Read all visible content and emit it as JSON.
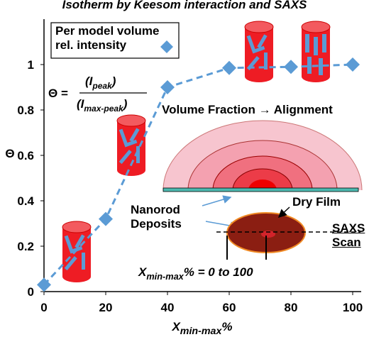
{
  "chart_data": {
    "type": "line",
    "title": "Isotherm by Keesom interaction and SAXS",
    "x_label": {
      "main": "X",
      "sub": "min-max",
      "tail": "%"
    },
    "y_label": "Θ",
    "x": [
      0,
      20,
      40,
      60,
      80,
      100
    ],
    "series": [
      {
        "name": "Per model volume rel. intensity",
        "color": "#5b9bd5",
        "values": [
          0.03,
          0.32,
          0.9,
          0.985,
          0.99,
          1.0
        ]
      }
    ],
    "xlim": [
      0,
      100
    ],
    "xticks": [
      0,
      20,
      40,
      60,
      80,
      100
    ],
    "ylim": [
      0,
      1.2
    ],
    "yticks": [
      0,
      0.2,
      0.4,
      0.6,
      0.8,
      1
    ],
    "grid": false,
    "legend": "top-left",
    "annotations": {
      "formula": {
        "lhs": "Θ =",
        "num": {
          "main": "(I",
          "sub": "peak",
          "tail": ")"
        },
        "den": {
          "main": "(I",
          "sub": "max-peak",
          "tail": ")"
        }
      },
      "alignment": "Volume Fraction → Alignment",
      "deposits": "Nanorod Deposits",
      "dry_film": "Dry Film",
      "saxs_scan": "SAXS Scan",
      "range": {
        "main": "X",
        "sub": "min-max",
        "tail": "% =  0  to 100"
      }
    }
  }
}
